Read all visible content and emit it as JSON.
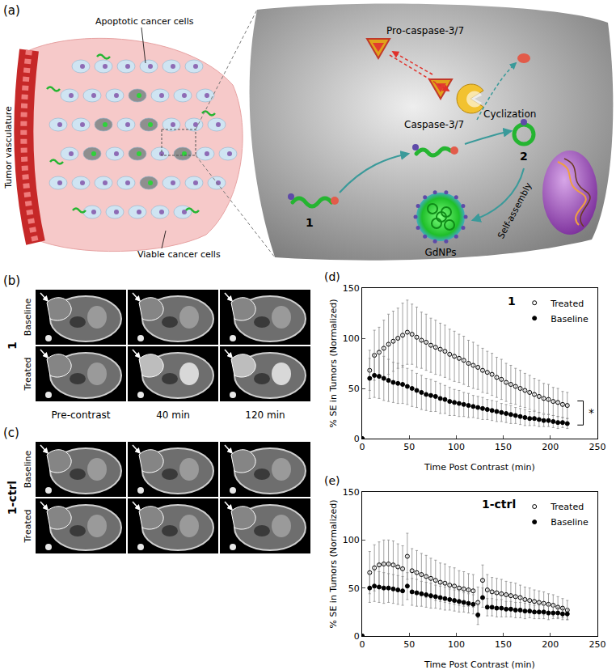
{
  "diagram": {
    "panel_a": {
      "label": "(a)",
      "tumor_vasculature": "Tumor vasculature",
      "apoptotic_cells": "Apoptotic cancer cells",
      "viable_cells": "Viable cancer cells",
      "pro_caspase": "Pro-caspase-3/7",
      "caspase": "Caspase-3/7",
      "cyclization": "Cyclization",
      "compound_1": "1",
      "compound_2": "2",
      "self_assembly": "Self-assembly",
      "nanoparticles": "GdNPs"
    },
    "columns": [
      "Pre-contrast",
      "40 min",
      "120 min"
    ],
    "panel_b": {
      "label": "(b)",
      "compound": "1",
      "rows": [
        "Baseline",
        "Treated"
      ]
    },
    "panel_c": {
      "label": "(c)",
      "compound": "1-ctrl",
      "rows": [
        "Baseline",
        "Treated"
      ]
    }
  },
  "chart_data": [
    {
      "type": "scatter",
      "x_label": "Time Post Contrast (min)",
      "y_label": "% SE in Tumors (Normalized)",
      "annotations": [
        "(d)",
        "1",
        "*"
      ],
      "x": [
        0,
        8,
        13,
        18,
        23,
        28,
        33,
        38,
        43,
        48,
        53,
        58,
        63,
        68,
        73,
        78,
        83,
        88,
        93,
        98,
        103,
        108,
        113,
        118,
        123,
        128,
        133,
        138,
        143,
        148,
        153,
        158,
        163,
        168,
        173,
        178,
        183,
        188,
        193,
        198,
        203,
        208,
        213,
        218
      ],
      "series": [
        {
          "name": "Treated",
          "color": "#000000",
          "marker": "circle-open",
          "values": [
            0,
            68,
            83,
            86,
            90,
            94,
            97,
            100,
            103,
            106,
            104,
            101,
            98,
            96,
            93,
            91,
            89,
            87,
            84,
            82,
            80,
            78,
            75,
            73,
            71,
            68,
            66,
            64,
            61,
            59,
            56,
            54,
            52,
            50,
            48,
            46,
            44,
            42,
            40,
            39,
            37,
            36,
            34,
            33
          ],
          "error": [
            0,
            20,
            25,
            25,
            28,
            30,
            30,
            30,
            32,
            32,
            30,
            30,
            28,
            28,
            27,
            27,
            26,
            26,
            25,
            25,
            24,
            24,
            23,
            23,
            22,
            22,
            21,
            21,
            20,
            20,
            19,
            19,
            18,
            18,
            17,
            17,
            16,
            16,
            15,
            15,
            14,
            14,
            13,
            13
          ]
        },
        {
          "name": "Baseline",
          "color": "#000000",
          "marker": "circle",
          "values": [
            0,
            60,
            63,
            62,
            60,
            58,
            56,
            55,
            54,
            52,
            50,
            48,
            46,
            44,
            43,
            42,
            40,
            39,
            37,
            36,
            35,
            34,
            33,
            32,
            31,
            30,
            29,
            28,
            27,
            26,
            25,
            24,
            23,
            22,
            21,
            20,
            20,
            19,
            18,
            18,
            17,
            16,
            16,
            15
          ],
          "error": [
            0,
            20,
            22,
            22,
            22,
            21,
            20,
            20,
            19,
            18,
            18,
            17,
            17,
            16,
            16,
            15,
            15,
            14,
            14,
            13,
            13,
            12,
            12,
            11,
            11,
            11,
            10,
            10,
            10,
            9,
            9,
            9,
            8,
            8,
            8,
            7,
            7,
            7,
            6,
            6,
            6,
            6,
            5,
            5
          ]
        }
      ],
      "xlim": [
        0,
        250
      ],
      "xticks": [
        0,
        50,
        100,
        150,
        200,
        250
      ],
      "ylim": [
        0,
        150
      ],
      "yticks": [
        0,
        50,
        100,
        150
      ],
      "grid": false,
      "legend": "top right"
    },
    {
      "type": "scatter",
      "x_label": "Time Post Contrast (min)",
      "y_label": "% SE in Tumors (Normalized)",
      "annotations": [
        "(e)",
        "1-ctrl"
      ],
      "x": [
        0,
        8,
        13,
        18,
        23,
        28,
        33,
        38,
        43,
        48,
        53,
        58,
        63,
        68,
        73,
        78,
        83,
        88,
        93,
        98,
        103,
        108,
        113,
        118,
        123,
        128,
        133,
        138,
        143,
        148,
        153,
        158,
        163,
        168,
        173,
        178,
        183,
        188,
        193,
        198,
        203,
        208,
        213,
        218
      ],
      "series": [
        {
          "name": "Treated",
          "color": "#000000",
          "marker": "circle-open",
          "values": [
            0,
            66,
            71,
            74,
            75,
            75,
            74,
            72,
            70,
            83,
            68,
            66,
            64,
            62,
            60,
            58,
            56,
            55,
            53,
            52,
            50,
            49,
            48,
            47,
            35,
            58,
            48,
            46,
            45,
            44,
            43,
            42,
            41,
            40,
            38,
            37,
            36,
            35,
            34,
            33,
            32,
            30,
            29,
            27
          ],
          "error": [
            0,
            22,
            24,
            24,
            25,
            25,
            25,
            24,
            24,
            24,
            23,
            23,
            22,
            22,
            21,
            21,
            20,
            20,
            19,
            19,
            18,
            18,
            17,
            17,
            16,
            16,
            16,
            15,
            15,
            15,
            14,
            14,
            14,
            13,
            13,
            13,
            12,
            12,
            12,
            11,
            11,
            11,
            10,
            10
          ]
        },
        {
          "name": "Baseline",
          "color": "#000000",
          "marker": "circle",
          "values": [
            0,
            50,
            52,
            51,
            50,
            50,
            49,
            48,
            47,
            52,
            46,
            45,
            44,
            43,
            42,
            41,
            40,
            39,
            38,
            37,
            36,
            35,
            34,
            33,
            22,
            40,
            30,
            30,
            29,
            29,
            28,
            28,
            27,
            27,
            26,
            26,
            25,
            25,
            25,
            24,
            24,
            24,
            23,
            23
          ],
          "error": [
            0,
            15,
            16,
            16,
            16,
            15,
            15,
            15,
            15,
            14,
            14,
            14,
            13,
            13,
            13,
            12,
            12,
            12,
            11,
            11,
            11,
            10,
            10,
            10,
            10,
            10,
            9,
            9,
            9,
            9,
            8,
            8,
            8,
            8,
            8,
            7,
            7,
            7,
            7,
            7,
            6,
            6,
            6,
            6
          ]
        }
      ],
      "xlim": [
        0,
        250
      ],
      "xticks": [
        0,
        50,
        100,
        150,
        200,
        250
      ],
      "ylim": [
        0,
        150
      ],
      "yticks": [
        0,
        50,
        100,
        150
      ],
      "grid": false,
      "legend": "top right"
    }
  ]
}
